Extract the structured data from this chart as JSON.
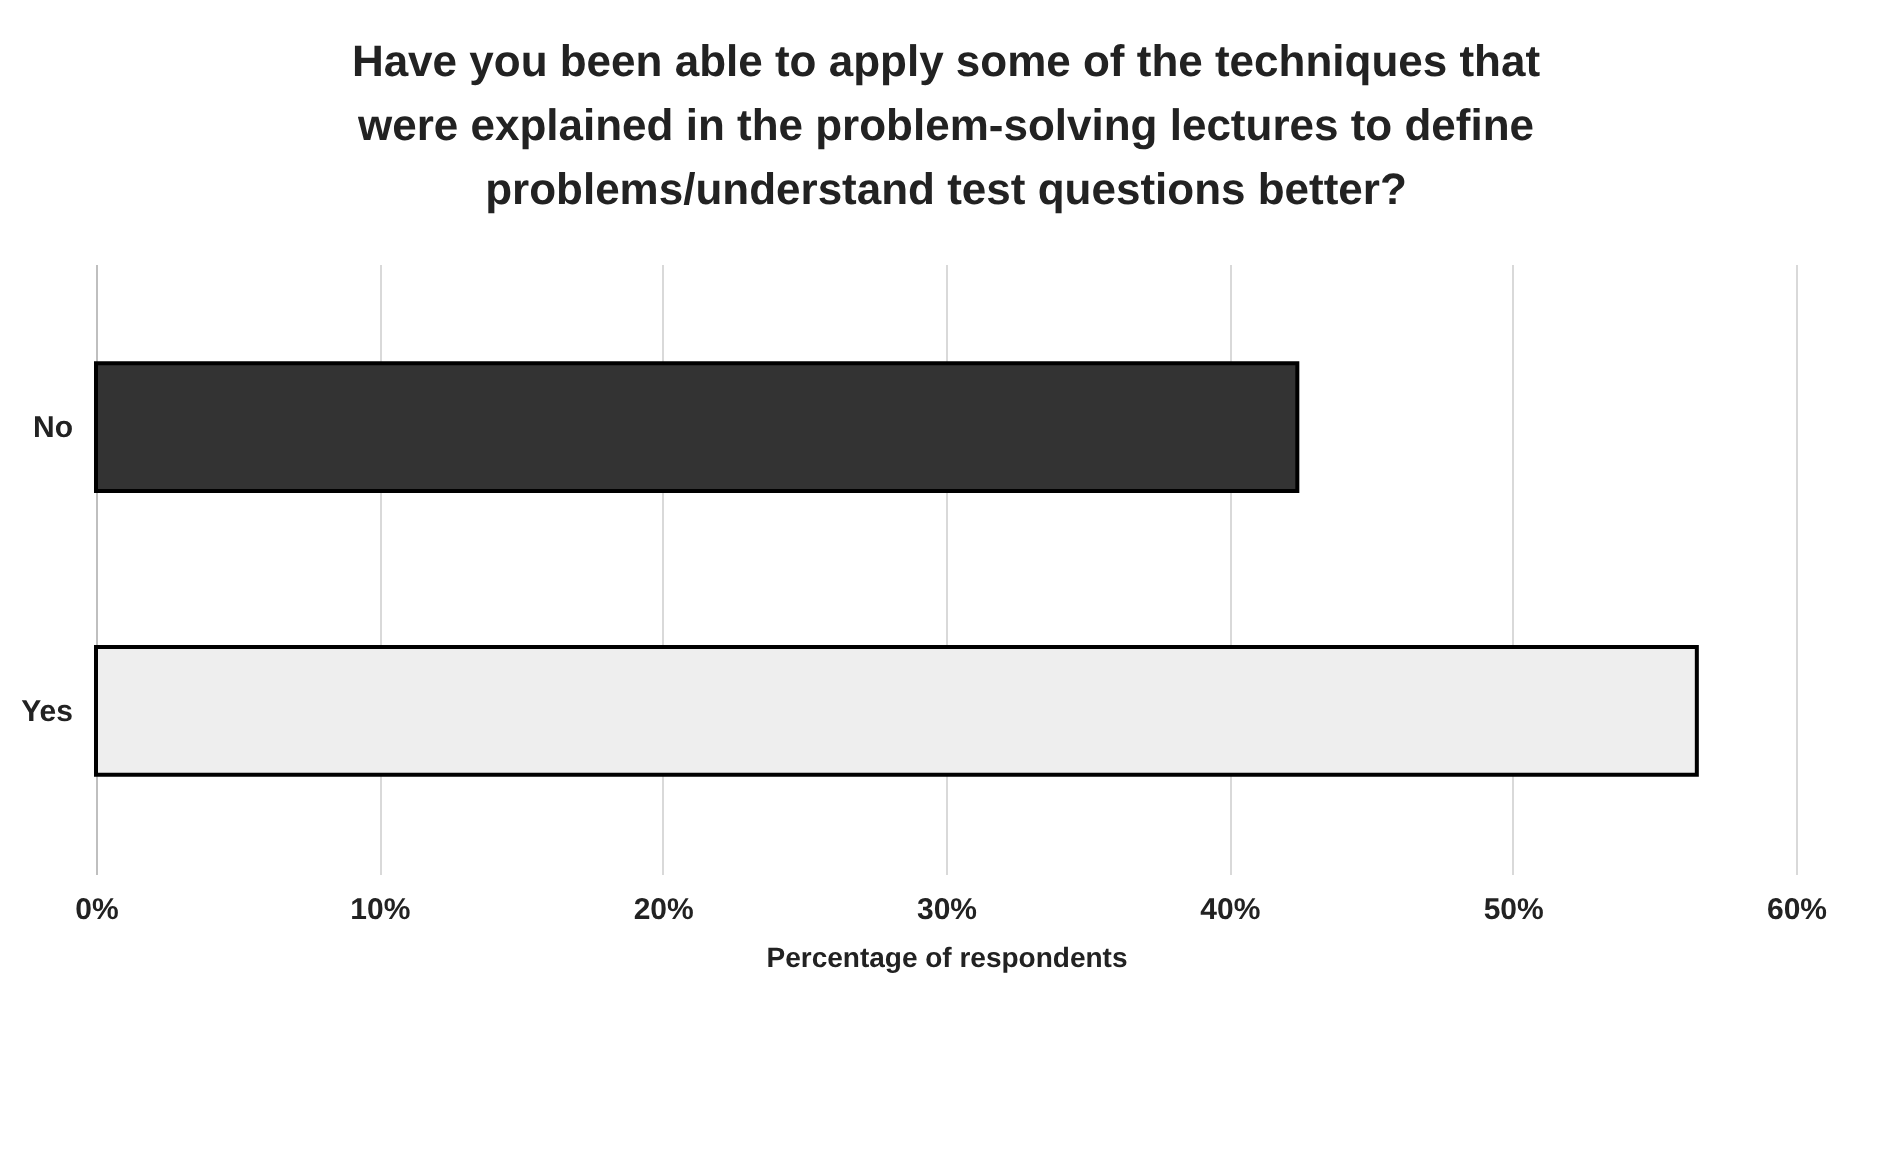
{
  "chart_data": {
    "type": "bar",
    "orientation": "horizontal",
    "title": "Have you been able to apply some of the techniques that were explained in the problem-solving lectures to define problems/understand test questions better?",
    "xlabel": "Percentage of respondents",
    "categories": [
      "No",
      "Yes"
    ],
    "values": [
      42.4,
      56.5
    ],
    "colors": [
      "#333333",
      "#eeeeee"
    ],
    "xlim": [
      0,
      60
    ],
    "xticks": [
      {
        "value": 0,
        "label": "0%"
      },
      {
        "value": 10,
        "label": "10%"
      },
      {
        "value": 20,
        "label": "20%"
      },
      {
        "value": 30,
        "label": "30%"
      },
      {
        "value": 40,
        "label": "40%"
      },
      {
        "value": 50,
        "label": "50%"
      },
      {
        "value": 60,
        "label": "60%"
      }
    ],
    "grid": "x"
  }
}
